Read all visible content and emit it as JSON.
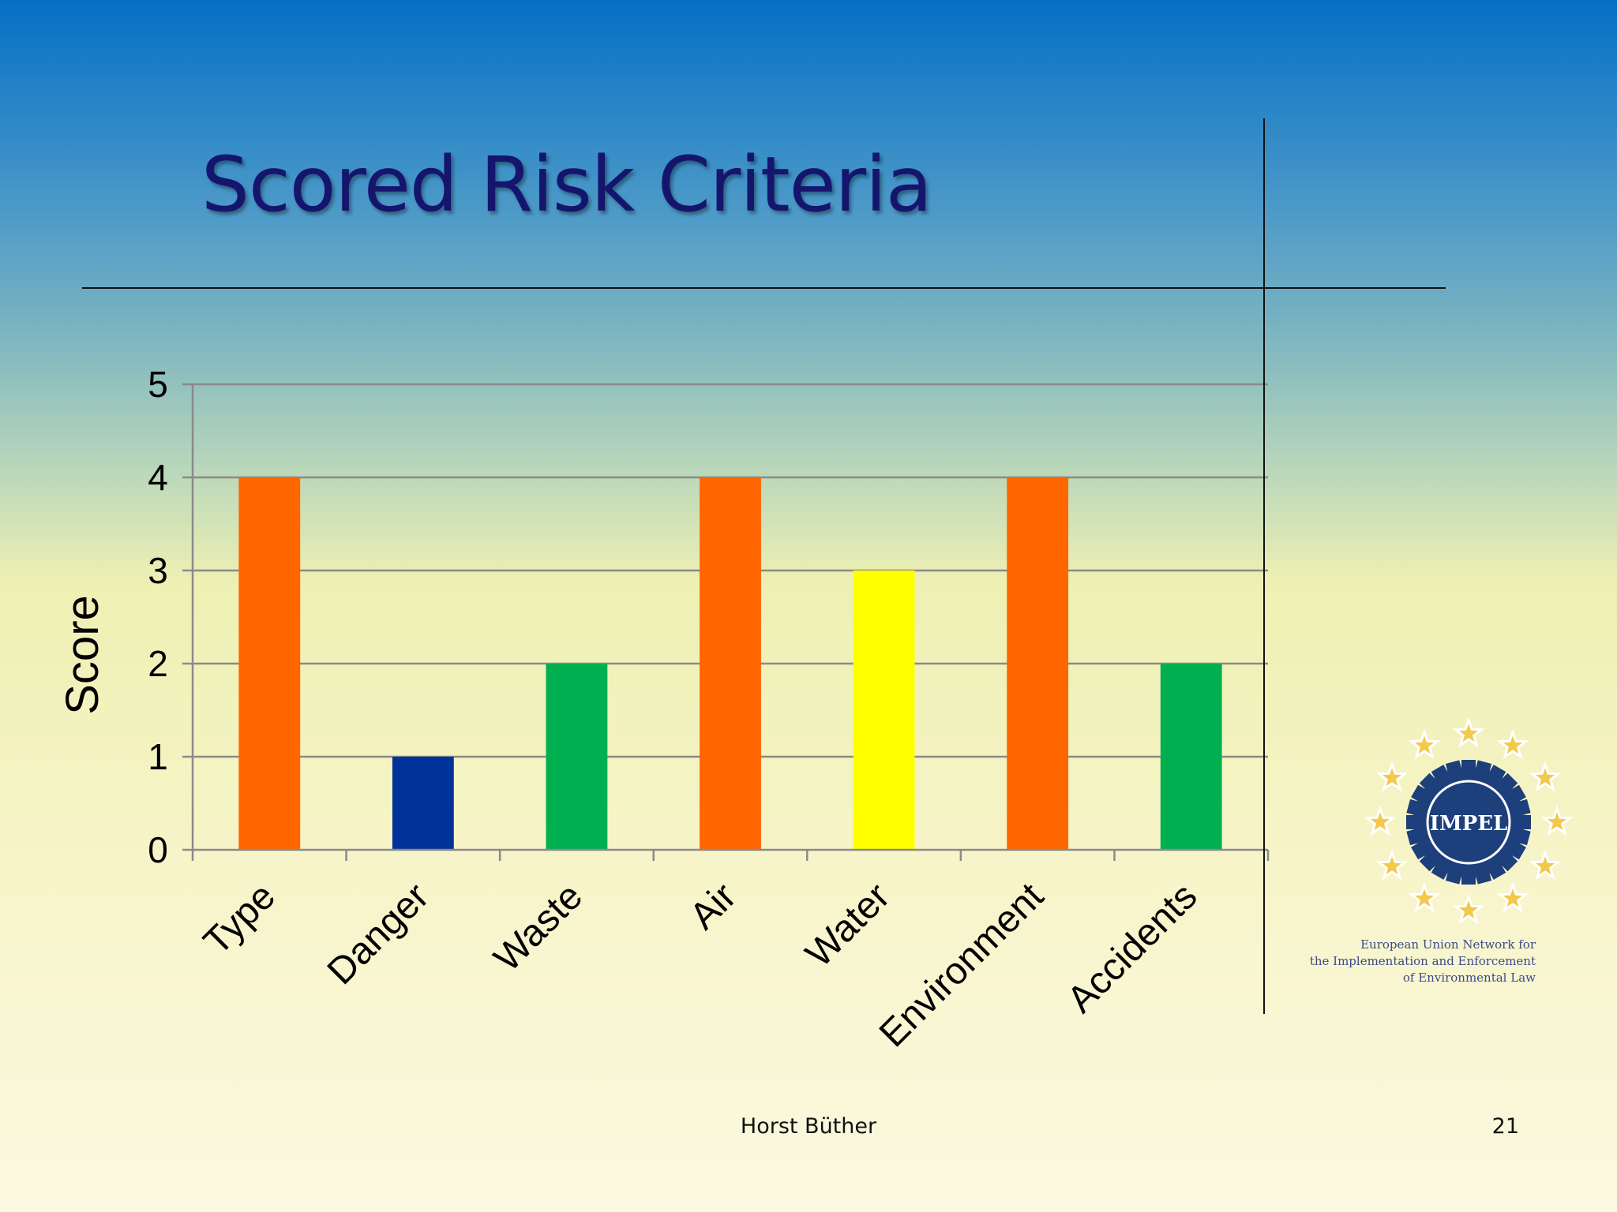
{
  "slide": {
    "title": "Scored Risk Criteria",
    "author": "Horst Büther",
    "page_number": "21"
  },
  "logo": {
    "name": "IMPEL",
    "tagline_lines": [
      "European Union Network for",
      "the Implementation and Enforcement",
      "of Environmental Law"
    ]
  },
  "chart_data": {
    "type": "bar",
    "title": "",
    "xlabel": "",
    "ylabel": "Score",
    "ylim": [
      0,
      5
    ],
    "yticks": [
      0,
      1,
      2,
      3,
      4,
      5
    ],
    "grid": true,
    "legend": false,
    "categories": [
      "Type",
      "Danger",
      "Waste",
      "Air",
      "Water",
      "Environment",
      "Accidents"
    ],
    "values": [
      4,
      1,
      2,
      4,
      3,
      4,
      2
    ],
    "bar_colors": [
      "#ff6600",
      "#003399",
      "#00b050",
      "#ff6600",
      "#ffff00",
      "#ff6600",
      "#00b050"
    ]
  }
}
